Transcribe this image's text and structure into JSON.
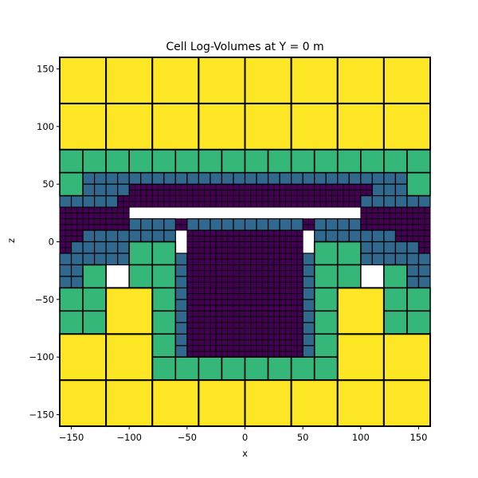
{
  "chart_data": {
    "type": "heatmap",
    "title": "Cell Log-Volumes at Y = 0 m",
    "xlabel": "x",
    "ylabel": "z",
    "xlim": [
      -160,
      160
    ],
    "ylim": [
      -160,
      160
    ],
    "xticks": [
      -150,
      -100,
      -50,
      0,
      50,
      100,
      150
    ],
    "yticks": [
      -150,
      -100,
      -50,
      0,
      50,
      100,
      150
    ],
    "xtick_labels": [
      "−150",
      "−100",
      "−50",
      "0",
      "50",
      "100",
      "150"
    ],
    "ytick_labels": [
      "−150",
      "−100",
      "−50",
      "0",
      "50",
      "100",
      "150"
    ],
    "colormap": "viridis",
    "level_colors": {
      "40": "#fde725",
      "20": "#35b779",
      "10": "#31688e",
      "5": "#440154"
    },
    "cell_edge_color": "#000000",
    "cells": {
      "size_40": [
        [
          -160,
          80
        ],
        [
          -120,
          80
        ],
        [
          -80,
          80
        ],
        [
          -40,
          80
        ],
        [
          0,
          80
        ],
        [
          40,
          80
        ],
        [
          80,
          80
        ],
        [
          120,
          80
        ],
        [
          -160,
          120
        ],
        [
          -120,
          120
        ],
        [
          -80,
          120
        ],
        [
          -40,
          120
        ],
        [
          0,
          120
        ],
        [
          40,
          120
        ],
        [
          80,
          120
        ],
        [
          120,
          120
        ],
        [
          -160,
          -160
        ],
        [
          -120,
          -160
        ],
        [
          -80,
          -160
        ],
        [
          -40,
          -160
        ],
        [
          0,
          -160
        ],
        [
          40,
          -160
        ],
        [
          80,
          -160
        ],
        [
          120,
          -160
        ],
        [
          -160,
          -120
        ],
        [
          -120,
          -120
        ],
        [
          80,
          -120
        ],
        [
          120,
          -120
        ],
        [
          -120,
          -80
        ],
        [
          80,
          -80
        ]
      ],
      "size_20": [
        [
          -160,
          60
        ],
        [
          -140,
          60
        ],
        [
          -120,
          60
        ],
        [
          -100,
          60
        ],
        [
          -80,
          60
        ],
        [
          -60,
          60
        ],
        [
          -40,
          60
        ],
        [
          -20,
          60
        ],
        [
          0,
          60
        ],
        [
          20,
          60
        ],
        [
          40,
          60
        ],
        [
          60,
          60
        ],
        [
          80,
          60
        ],
        [
          100,
          60
        ],
        [
          120,
          60
        ],
        [
          140,
          60
        ],
        [
          -160,
          40
        ],
        [
          140,
          40
        ],
        [
          -100,
          -20
        ],
        [
          -80,
          -20
        ],
        [
          60,
          -20
        ],
        [
          80,
          -20
        ],
        [
          -140,
          -40
        ],
        [
          -100,
          -40
        ],
        [
          -80,
          -40
        ],
        [
          60,
          -40
        ],
        [
          80,
          -40
        ],
        [
          120,
          -40
        ],
        [
          -160,
          -60
        ],
        [
          -140,
          -60
        ],
        [
          -80,
          -60
        ],
        [
          60,
          -60
        ],
        [
          120,
          -60
        ],
        [
          140,
          -60
        ],
        [
          -160,
          -80
        ],
        [
          -140,
          -80
        ],
        [
          -80,
          -80
        ],
        [
          60,
          -80
        ],
        [
          120,
          -80
        ],
        [
          140,
          -80
        ],
        [
          -80,
          -100
        ],
        [
          60,
          -100
        ],
        [
          -80,
          -120
        ],
        [
          -60,
          -120
        ],
        [
          -40,
          -120
        ],
        [
          -20,
          -120
        ],
        [
          0,
          -120
        ],
        [
          20,
          -120
        ],
        [
          40,
          -120
        ],
        [
          60,
          -120
        ]
      ],
      "size_10_rects": [
        [
          -140,
          50,
          140,
          60
        ],
        [
          -160,
          30,
          -140,
          40
        ],
        [
          -140,
          30,
          -110,
          50
        ],
        [
          -110,
          40,
          -100,
          50
        ],
        [
          -100,
          10,
          -60,
          20
        ],
        [
          -50,
          10,
          50,
          20
        ],
        [
          60,
          10,
          100,
          20
        ],
        [
          110,
          40,
          140,
          50
        ],
        [
          100,
          30,
          140,
          40
        ],
        [
          140,
          30,
          160,
          40
        ],
        [
          -140,
          0,
          -60,
          10
        ],
        [
          60,
          0,
          130,
          10
        ],
        [
          -150,
          -10,
          -60,
          0
        ],
        [
          60,
          -10,
          150,
          0
        ],
        [
          -160,
          -20,
          -100,
          -10
        ],
        [
          100,
          -20,
          160,
          -10
        ],
        [
          -160,
          -30,
          -120,
          -20
        ],
        [
          120,
          -30,
          160,
          -20
        ],
        [
          -160,
          -40,
          -140,
          -30
        ],
        [
          140,
          -40,
          160,
          -30
        ],
        [
          -160,
          -50,
          -140,
          -40
        ],
        [
          140,
          -50,
          160,
          -40
        ],
        [
          -60,
          -100,
          -50,
          -10
        ],
        [
          50,
          -100,
          60,
          -10
        ],
        [
          -60,
          -120,
          60,
          -100
        ]
      ],
      "size_5_rects": [
        [
          -110,
          30,
          110,
          50
        ],
        [
          -160,
          20,
          -100,
          30
        ],
        [
          -160,
          10,
          -100,
          20
        ],
        [
          100,
          20,
          160,
          30
        ],
        [
          100,
          10,
          160,
          20
        ],
        [
          -160,
          0,
          -140,
          10
        ],
        [
          130,
          0,
          160,
          10
        ],
        [
          -160,
          -10,
          -150,
          0
        ],
        [
          150,
          -10,
          160,
          0
        ],
        [
          -60,
          10,
          -50,
          20
        ],
        [
          50,
          10,
          60,
          20
        ],
        [
          -50,
          -100,
          50,
          10
        ]
      ]
    }
  }
}
